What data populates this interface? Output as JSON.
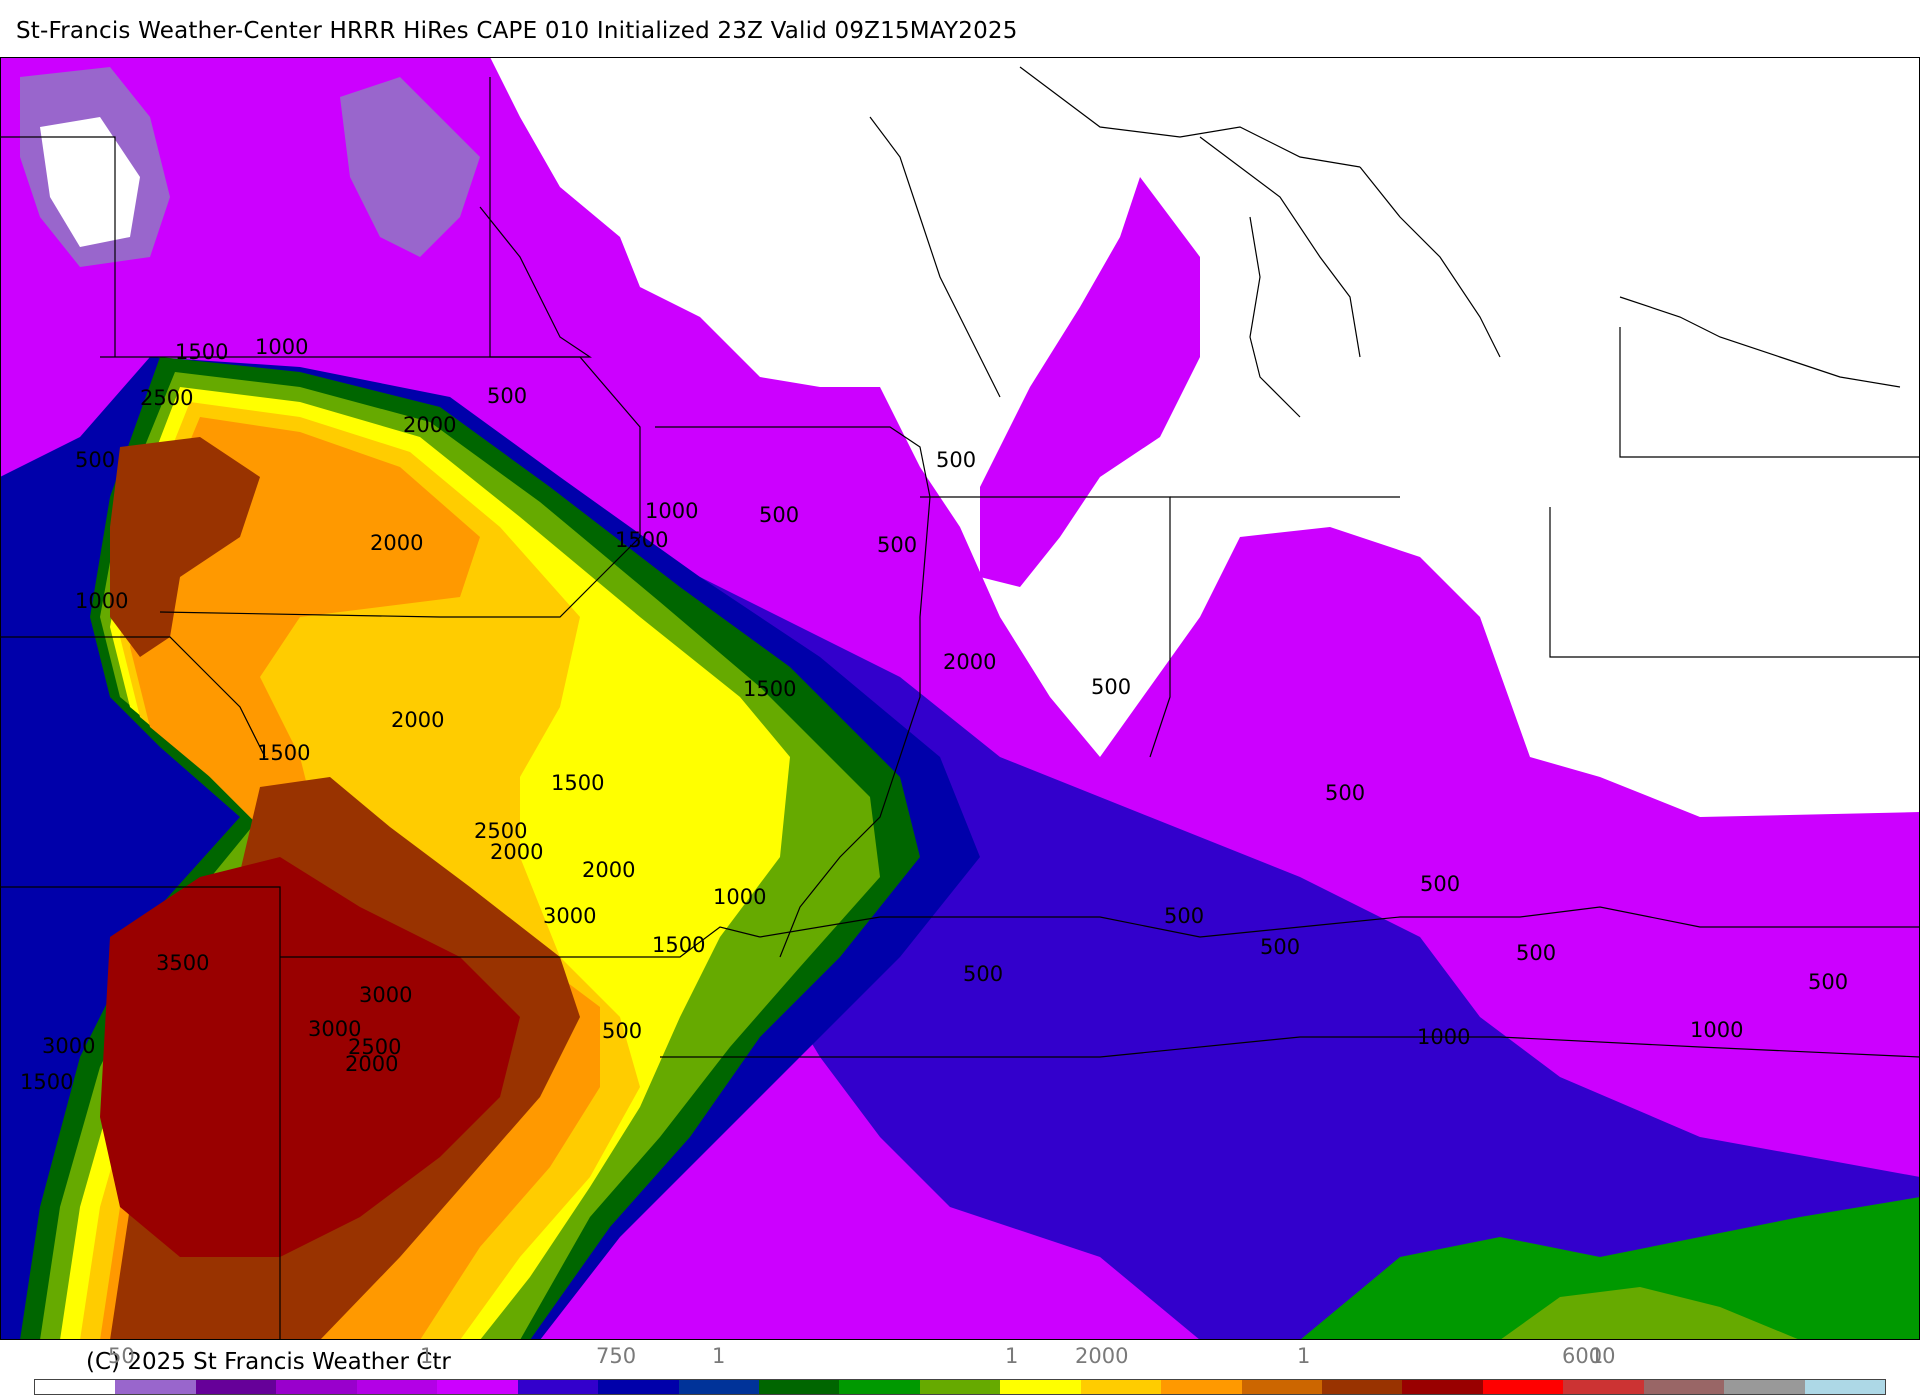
{
  "header": {
    "title": "St-Francis Weather-Center HRRR HiRes CAPE  010 Initialized  23Z Valid 09Z15MAY2025"
  },
  "footer": {
    "copyright": "(C) 2025 St Francis Weather Ctr"
  },
  "colorbar": {
    "colors": [
      "#ffffff",
      "#9966cc",
      "#660099",
      "#9900cc",
      "#b300e6",
      "#cc00ff",
      "#3300cc",
      "#0000aa",
      "#003399",
      "#006600",
      "#009900",
      "#66aa00",
      "#ffff00",
      "#ffcc00",
      "#ff9900",
      "#cc6600",
      "#993300",
      "#990000",
      "#ff0000",
      "#cc3333",
      "#996666",
      "#999999",
      "#add8e6"
    ],
    "labels": [
      {
        "text": "50"
      },
      {
        "text": "1"
      },
      {
        "text": "750"
      },
      {
        "text": "1"
      },
      {
        "text": "1"
      },
      {
        "text": "2000"
      },
      {
        "text": "1"
      },
      {
        "text": "6000"
      },
      {
        "text": "1"
      }
    ]
  },
  "contour_labels": [
    "1500",
    "1000",
    "2500",
    "2000",
    "500",
    "500",
    "2000",
    "1000",
    "500",
    "500",
    "1500",
    "500",
    "1000",
    "2000",
    "500",
    "1500",
    "2000",
    "1500",
    "1500",
    "500",
    "2500",
    "2000",
    "2000",
    "3000",
    "1000",
    "500",
    "500",
    "3500",
    "3000",
    "1500",
    "3000",
    "2500",
    "2000",
    "500",
    "500",
    "500",
    "500",
    "1000",
    "1000",
    "500",
    "3000",
    "1500"
  ]
}
